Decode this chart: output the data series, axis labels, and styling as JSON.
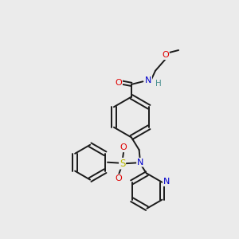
{
  "bg_color": "#ebebeb",
  "bond_color": "#1a1a1a",
  "atom_colors": {
    "O": "#e00000",
    "N": "#0000cc",
    "S": "#b8b800",
    "H": "#4a9090",
    "C": "#1a1a1a"
  }
}
